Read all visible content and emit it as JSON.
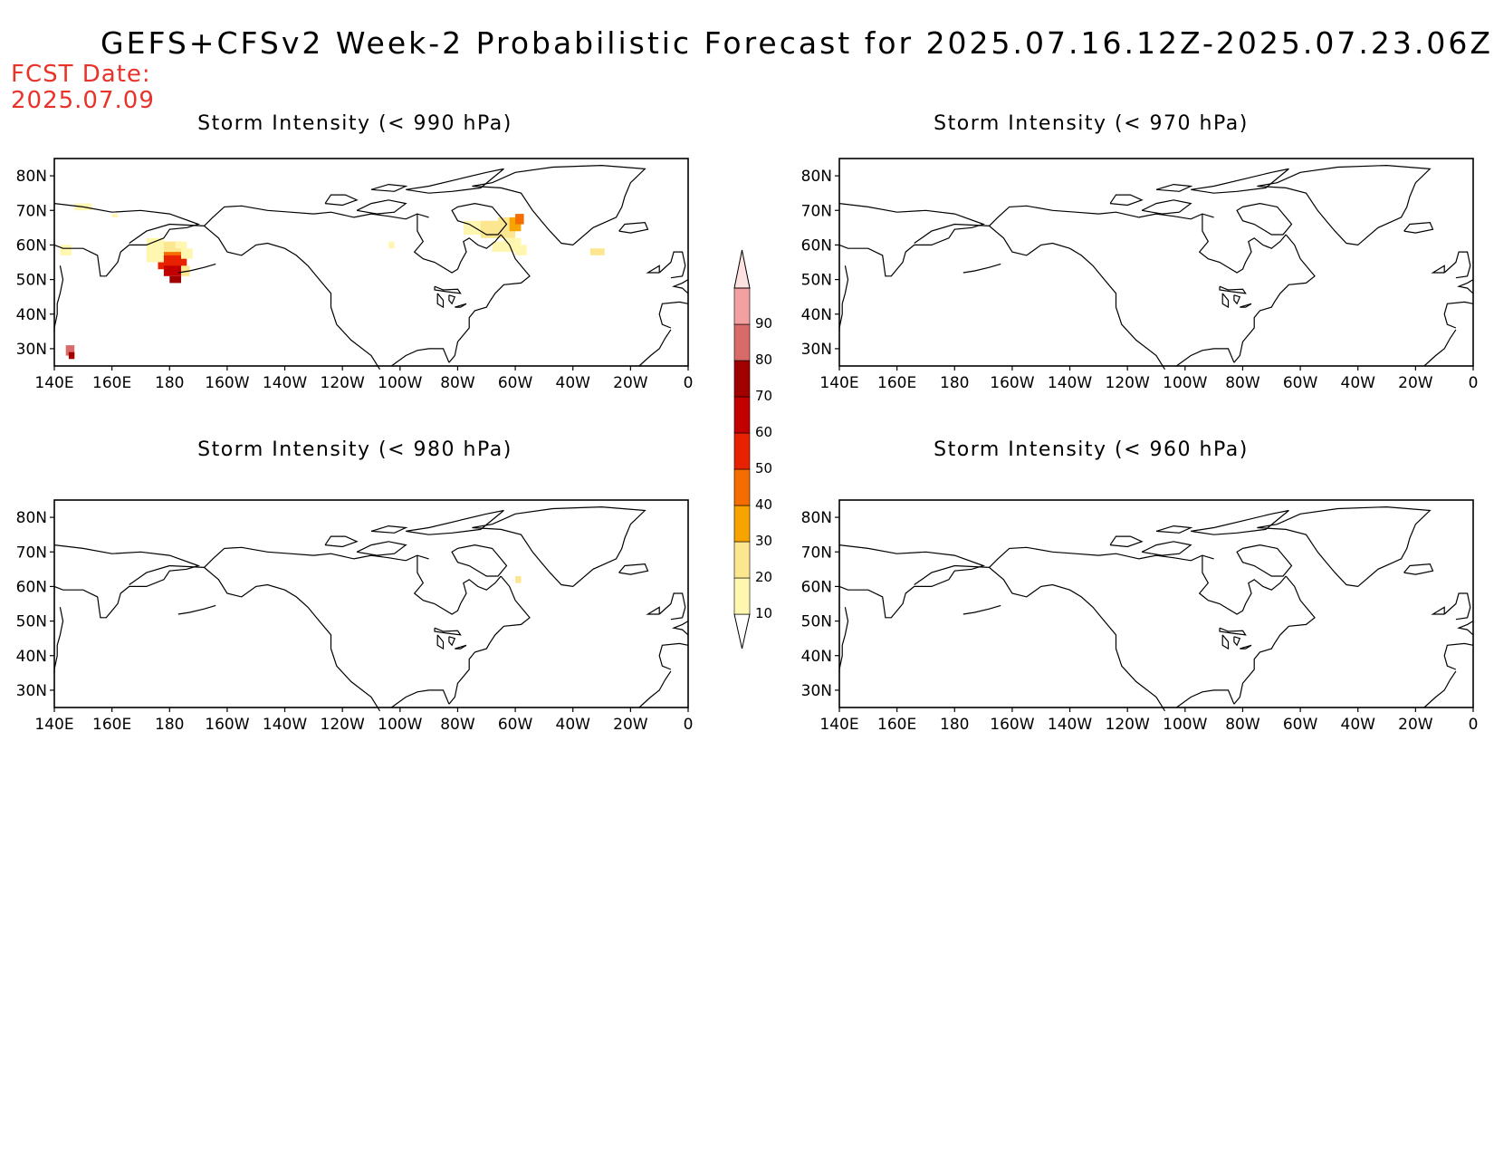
{
  "title": "GEFS+CFSv2 Week-2 Probabilistic Forecast for 2025.07.16.12Z-2025.07.23.06Z",
  "fcst_date": {
    "label": "FCST Date:",
    "value": "2025.07.09"
  },
  "panels": [
    {
      "title": "Storm Intensity (< 990 hPa)"
    },
    {
      "title": "Storm Intensity (< 970 hPa)"
    },
    {
      "title": "Storm Intensity (< 980 hPa)"
    },
    {
      "title": "Storm Intensity (< 960 hPa)"
    }
  ],
  "lat_labels": [
    "80N",
    "70N",
    "60N",
    "50N",
    "40N",
    "30N"
  ],
  "lon_labels": [
    "140E",
    "160E",
    "180",
    "160W",
    "140W",
    "120W",
    "100W",
    "80W",
    "60W",
    "40W",
    "20W",
    "0"
  ],
  "colorbar": {
    "levels": [
      "10",
      "20",
      "30",
      "40",
      "50",
      "60",
      "70",
      "80",
      "90"
    ],
    "colors": [
      "#fff6b0",
      "#fde690",
      "#f7a400",
      "#f56d00",
      "#e82200",
      "#c20000",
      "#a00000",
      "#d96a6a",
      "#f2a0a0",
      "#fde0e0"
    ]
  },
  "chart_data": {
    "type": "heatmap",
    "units": "%",
    "region": {
      "lon_range": [
        "140E",
        "0"
      ],
      "lat_range": [
        "25N",
        "85N"
      ]
    },
    "panels": [
      {
        "threshold_hPa": 990,
        "features": [
          {
            "area": "western Bering Sea (~55N, 180)",
            "max_probability": 60
          },
          {
            "area": "Hudson Strait / northern Labrador (~65N, 65W)",
            "max_probability": 40
          },
          {
            "area": "Kamchatka coast (~57N, 160E)",
            "max_probability": 10
          },
          {
            "area": "Denmark Strait south of Greenland (~60N, 35W)",
            "max_probability": 20
          },
          {
            "area": "NW Pacific (~30N, 145E)",
            "max_probability": 80
          }
        ]
      },
      {
        "threshold_hPa": 970,
        "features": []
      },
      {
        "threshold_hPa": 980,
        "features": [
          {
            "area": "Labrador coast (~63N, 62W)",
            "max_probability": 10
          }
        ]
      },
      {
        "threshold_hPa": 960,
        "features": []
      }
    ]
  }
}
